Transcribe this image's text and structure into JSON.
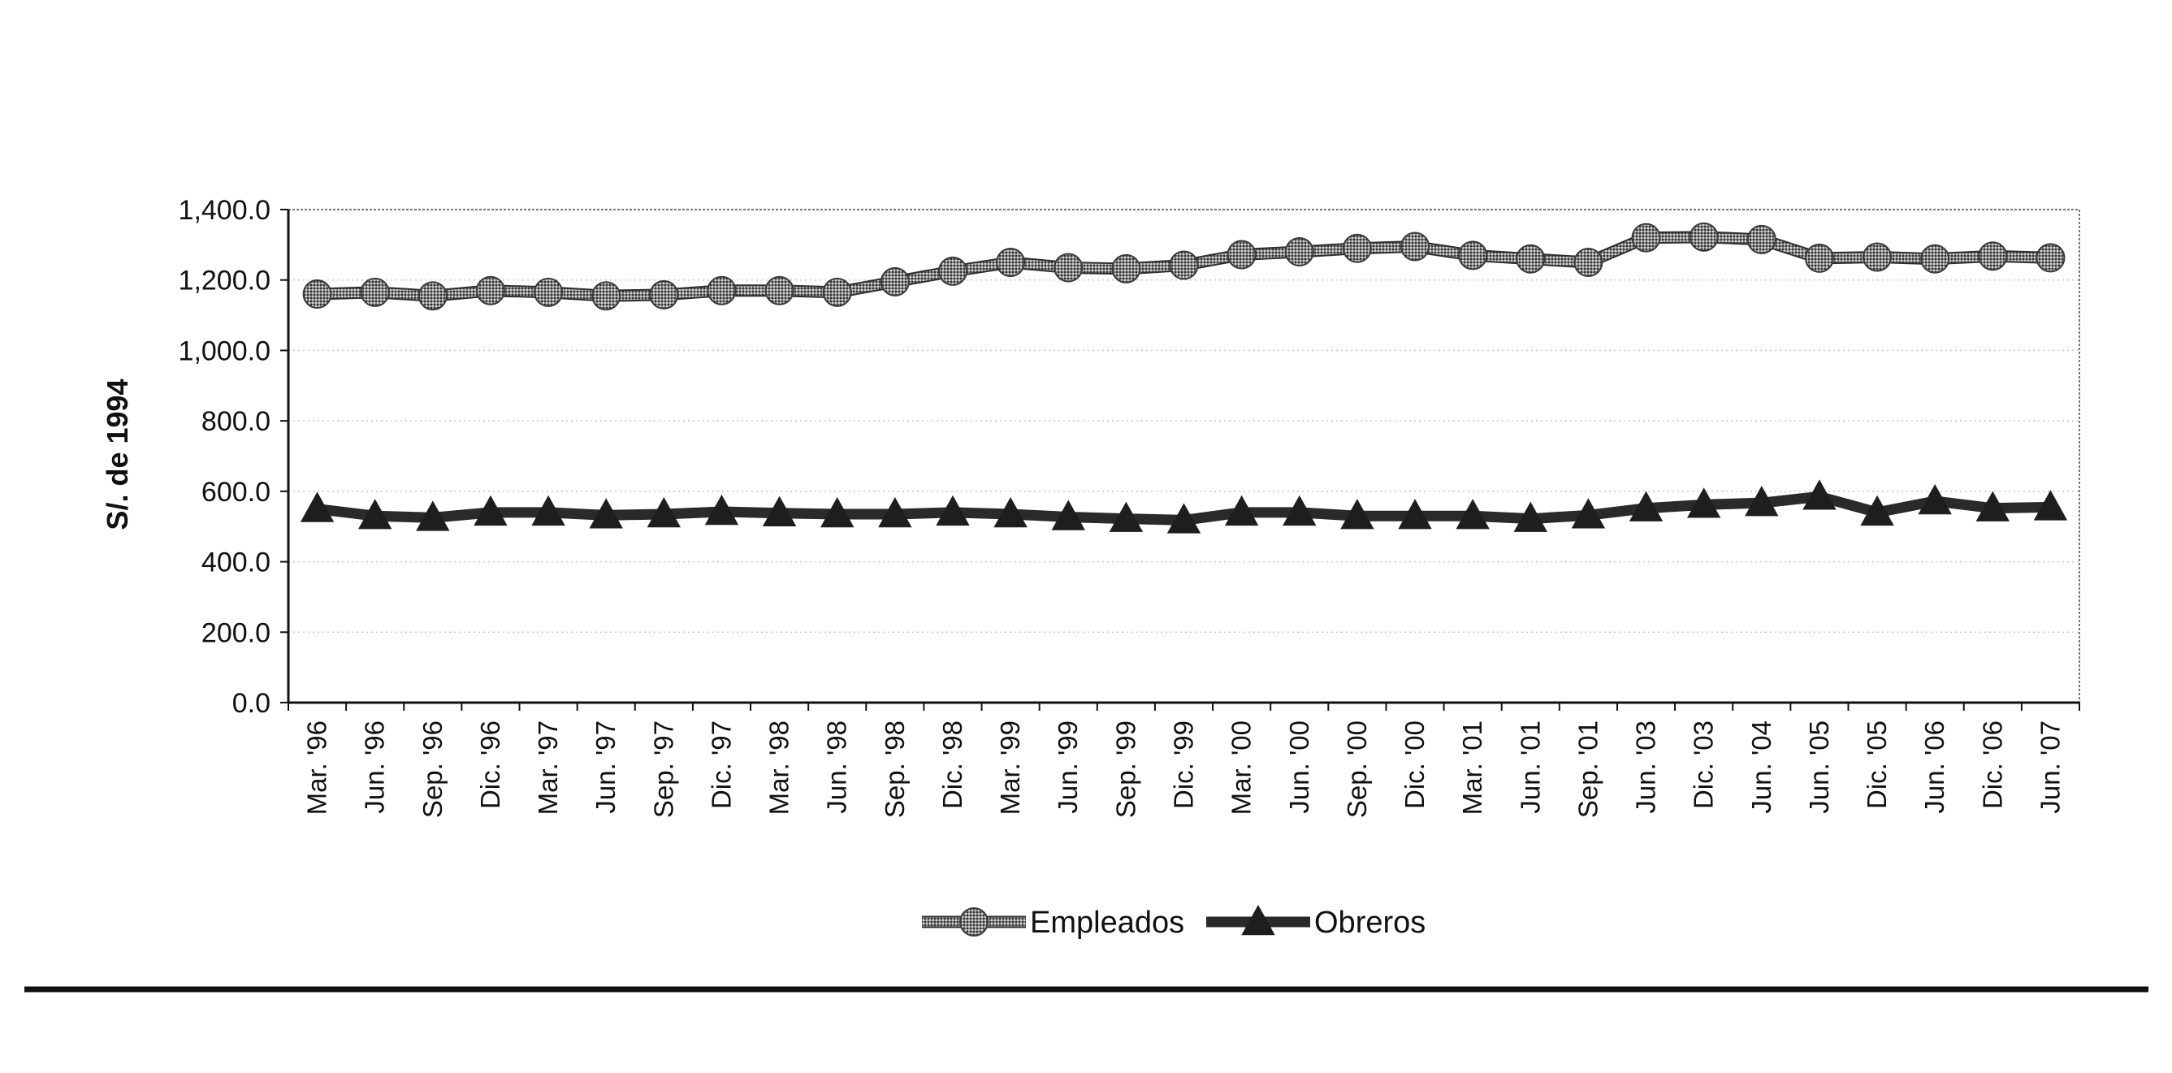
{
  "chart_data": {
    "type": "line",
    "title": "",
    "xlabel": "",
    "ylabel": "S/. de 1994",
    "ylim": [
      0,
      1400
    ],
    "yticks": [
      "0.0",
      "200.0",
      "400.0",
      "600.0",
      "800.0",
      "1,000.0",
      "1,200.0",
      "1,400.0"
    ],
    "grid": true,
    "legend_position": "bottom",
    "categories": [
      "Mar. '96",
      "Jun. '96",
      "Sep. '96",
      "Dic. '96",
      "Mar. '97",
      "Jun. '97",
      "Sep. '97",
      "Dic. '97",
      "Mar. '98",
      "Jun. '98",
      "Sep. '98",
      "Dic. '98",
      "Mar. '99",
      "Jun. '99",
      "Sep. '99",
      "Dic. '99",
      "Mar. '00",
      "Jun. '00",
      "Sep. '00",
      "Dic. '00",
      "Mar. '01",
      "Jun. '01",
      "Sep. '01",
      "Jun. '03",
      "Dic. '03",
      "Jun. '04",
      "Jun. '05",
      "Dic. '05",
      "Jun. '06",
      "Dic. '06",
      "Jun. '07"
    ],
    "series": [
      {
        "name": "Empleados",
        "marker": "circle",
        "color": "#555555",
        "values": [
          1160,
          1165,
          1155,
          1170,
          1165,
          1155,
          1158,
          1170,
          1170,
          1165,
          1195,
          1225,
          1250,
          1235,
          1232,
          1242,
          1272,
          1280,
          1290,
          1295,
          1270,
          1260,
          1250,
          1320,
          1322,
          1315,
          1262,
          1265,
          1260,
          1268,
          1263
        ]
      },
      {
        "name": "Obreros",
        "marker": "triangle",
        "color": "#2a2a2a",
        "values": [
          550,
          530,
          525,
          540,
          540,
          532,
          535,
          542,
          538,
          535,
          535,
          540,
          535,
          527,
          522,
          518,
          540,
          540,
          530,
          530,
          530,
          522,
          532,
          552,
          562,
          567,
          585,
          540,
          572,
          552,
          555
        ]
      }
    ]
  }
}
